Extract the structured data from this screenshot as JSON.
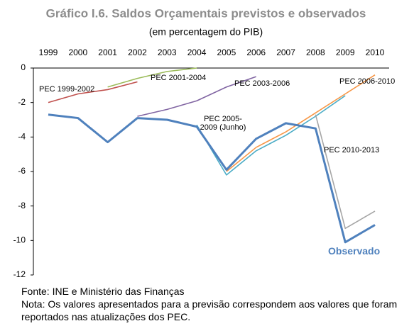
{
  "chart_data": {
    "type": "line",
    "title": "Gráfico I.6. Saldos Orçamentais previstos e observados",
    "subtitle": "(em percentagem do PIB)",
    "categories": [
      "1999",
      "2000",
      "2001",
      "2002",
      "2003",
      "2004",
      "2005",
      "2006",
      "2007",
      "2008",
      "2009",
      "2010"
    ],
    "series": [
      {
        "name": "PEC 1999-2002",
        "color": "#c0504d",
        "values": [
          -2.0,
          -1.5,
          -1.25,
          -0.8,
          null,
          null,
          null,
          null,
          null,
          null,
          null,
          null
        ]
      },
      {
        "name": "PEC 2001-2004",
        "color": "#9bbb59",
        "values": [
          null,
          null,
          -1.1,
          -0.6,
          -0.2,
          0.0,
          null,
          null,
          null,
          null,
          null,
          null
        ]
      },
      {
        "name": "PEC 2003-2006",
        "color": "#8064a2",
        "values": [
          null,
          null,
          null,
          -2.8,
          -2.4,
          -1.9,
          -1.1,
          -0.5,
          null,
          null,
          null,
          null
        ]
      },
      {
        "name": "PEC 2005-2009 (Junho)",
        "color": "#4bacc6",
        "values": [
          null,
          null,
          null,
          null,
          null,
          -3.3,
          -6.2,
          -4.8,
          -3.9,
          -2.8,
          -1.6,
          null
        ]
      },
      {
        "name": "PEC 2006-2010",
        "color": "#f79646",
        "values": [
          null,
          null,
          null,
          null,
          null,
          null,
          -6.0,
          -4.6,
          -3.7,
          -2.6,
          -1.5,
          -0.4
        ]
      },
      {
        "name": "PEC 2010-2013",
        "color": "#a6a6a6",
        "values": [
          null,
          null,
          null,
          null,
          null,
          null,
          null,
          null,
          null,
          -2.7,
          -9.3,
          -8.3
        ]
      },
      {
        "name": "Observado",
        "color": "#4f81bd",
        "values": [
          -2.7,
          -2.9,
          -4.3,
          -2.9,
          -3.0,
          -3.4,
          -5.9,
          -4.1,
          -3.2,
          -3.5,
          -10.1,
          -9.1
        ]
      }
    ],
    "ylim": [
      -12,
      0
    ],
    "yticks": [
      0,
      -2,
      -4,
      -6,
      -8,
      -10,
      -12
    ],
    "source": "Fonte: INE e Ministério das Finanças",
    "note": "Nota: Os valores apresentados para a previsão correspondem aos valores que foram reportados nas atualizações dos PEC."
  }
}
